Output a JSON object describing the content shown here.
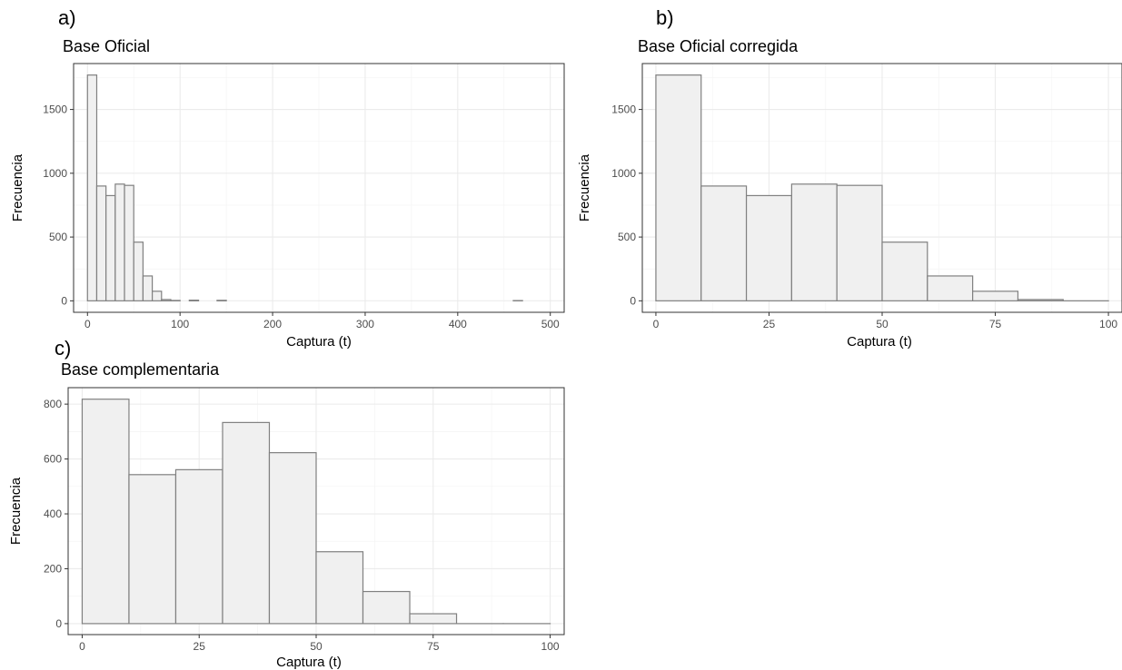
{
  "chart_data": [
    {
      "type": "bar",
      "panel_label": "a)",
      "title": "Base Oficial",
      "xlabel": "Captura (t)",
      "ylabel": "Frecuencia",
      "xlim": [
        -15,
        515
      ],
      "ylim": [
        -90,
        1860
      ],
      "xticks": [
        0,
        100,
        200,
        300,
        400,
        500
      ],
      "yticks": [
        0,
        500,
        1000,
        1500
      ],
      "grid": true,
      "bin_width": 10,
      "bins": [
        {
          "x0": 0,
          "x1": 10,
          "count": 1770
        },
        {
          "x0": 10,
          "x1": 20,
          "count": 900
        },
        {
          "x0": 20,
          "x1": 30,
          "count": 825
        },
        {
          "x0": 30,
          "x1": 40,
          "count": 915
        },
        {
          "x0": 40,
          "x1": 50,
          "count": 905
        },
        {
          "x0": 50,
          "x1": 60,
          "count": 460
        },
        {
          "x0": 60,
          "x1": 70,
          "count": 195
        },
        {
          "x0": 70,
          "x1": 80,
          "count": 75
        },
        {
          "x0": 80,
          "x1": 90,
          "count": 10
        },
        {
          "x0": 90,
          "x1": 100,
          "count": 3
        },
        {
          "x0": 110,
          "x1": 120,
          "count": 5
        },
        {
          "x0": 140,
          "x1": 150,
          "count": 4
        },
        {
          "x0": 460,
          "x1": 470,
          "count": 2
        }
      ]
    },
    {
      "type": "bar",
      "panel_label": "b)",
      "title": "Base Oficial corregida",
      "xlabel": "Captura (t)",
      "ylabel": "Frecuencia",
      "xlim": [
        -3,
        103
      ],
      "ylim": [
        -90,
        1860
      ],
      "xticks": [
        0,
        25,
        50,
        75,
        100
      ],
      "yticks": [
        0,
        500,
        1000,
        1500
      ],
      "grid": true,
      "bin_width": 10,
      "bins": [
        {
          "x0": 0,
          "x1": 10,
          "count": 1770
        },
        {
          "x0": 10,
          "x1": 20,
          "count": 900
        },
        {
          "x0": 20,
          "x1": 30,
          "count": 825
        },
        {
          "x0": 30,
          "x1": 40,
          "count": 915
        },
        {
          "x0": 40,
          "x1": 50,
          "count": 905
        },
        {
          "x0": 50,
          "x1": 60,
          "count": 460
        },
        {
          "x0": 60,
          "x1": 70,
          "count": 195
        },
        {
          "x0": 70,
          "x1": 80,
          "count": 75
        },
        {
          "x0": 80,
          "x1": 90,
          "count": 10
        },
        {
          "x0": 90,
          "x1": 100,
          "count": 0
        }
      ]
    },
    {
      "type": "bar",
      "panel_label": "c)",
      "title": "Base complementaria",
      "xlabel": "Captura (t)",
      "ylabel": "Frecuencia",
      "xlim": [
        -3,
        103
      ],
      "ylim": [
        -40,
        860
      ],
      "xticks": [
        0,
        25,
        50,
        75,
        100
      ],
      "yticks": [
        0,
        200,
        400,
        600,
        800
      ],
      "grid": true,
      "bin_width": 10,
      "bins": [
        {
          "x0": 0,
          "x1": 10,
          "count": 818
        },
        {
          "x0": 10,
          "x1": 20,
          "count": 543
        },
        {
          "x0": 20,
          "x1": 30,
          "count": 561
        },
        {
          "x0": 30,
          "x1": 40,
          "count": 733
        },
        {
          "x0": 40,
          "x1": 50,
          "count": 623
        },
        {
          "x0": 50,
          "x1": 60,
          "count": 262
        },
        {
          "x0": 60,
          "x1": 70,
          "count": 117
        },
        {
          "x0": 70,
          "x1": 80,
          "count": 36
        },
        {
          "x0": 80,
          "x1": 90,
          "count": 0
        },
        {
          "x0": 90,
          "x1": 100,
          "count": 0
        }
      ]
    }
  ]
}
